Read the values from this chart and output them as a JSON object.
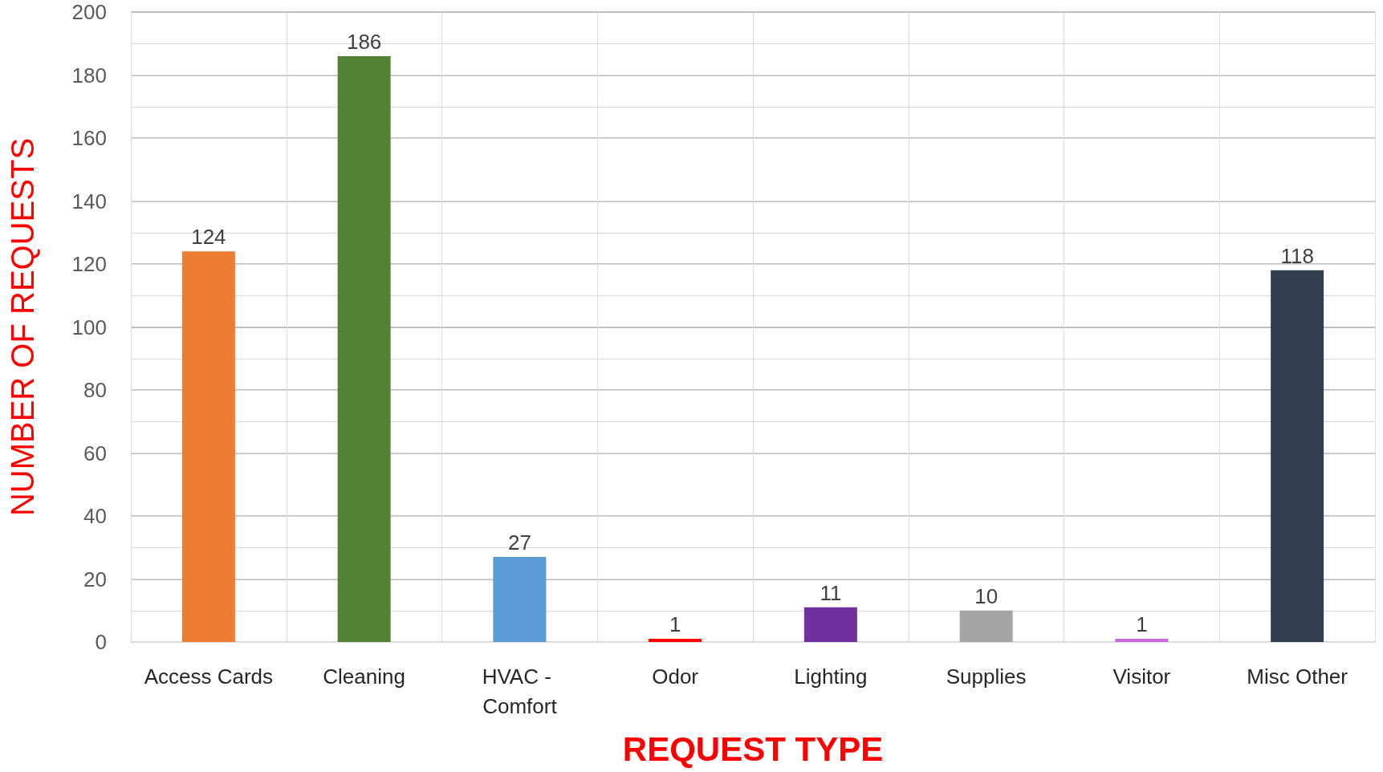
{
  "chart_data": {
    "type": "bar",
    "xlabel": "REQUEST TYPE",
    "ylabel": "NUMBER OF REQUESTS",
    "categories": [
      "Access Cards",
      "Cleaning",
      "HVAC - Comfort",
      "Odor",
      "Lighting",
      "Supplies",
      "Visitor",
      "Misc Other"
    ],
    "values": [
      124,
      186,
      27,
      1,
      11,
      10,
      1,
      118
    ],
    "colors": [
      "#ed7d31",
      "#548235",
      "#5b9bd5",
      "#ff0000",
      "#7030a0",
      "#a5a5a5",
      "#cc66dd",
      "#333f50"
    ],
    "ylim": [
      0,
      200
    ],
    "yticks": [
      0,
      20,
      40,
      60,
      80,
      100,
      120,
      140,
      160,
      180,
      200
    ],
    "grid": true,
    "data_labels": true
  }
}
